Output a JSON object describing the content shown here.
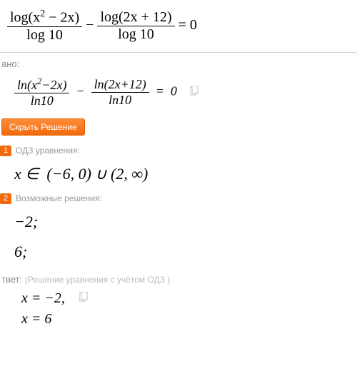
{
  "header_equation_html": "<span class=\"frac\"><span class=\"top\">log(x<span class=\"sup\">2</span> − 2x)</span><span class=\"bot\">log 10</span></span> − <span class=\"frac\"><span class=\"top\">log(2x + 12)</span><span class=\"bot\">log 10</span></span> = 0",
  "labels": {
    "given": "ано:",
    "hide_solution": "Скрыть Решение",
    "answer_main": "твет:",
    "answer_sub": "(Решение уравнения с учётом ОДЗ )"
  },
  "given_equation_html": "<span class=\"frac\"><span class=\"top\">ln(<i>x</i><span class=\"sup\">2</span>−2<i>x</i>)</span><span class=\"bot\">ln10</span></span> &nbsp;−&nbsp; <span class=\"frac\"><span class=\"top\">ln(2<i>x</i>+12)</span><span class=\"bot\">ln10</span></span> &nbsp;=&nbsp; 0",
  "steps": [
    {
      "num": "1",
      "text": "ОДЗ уравнения:",
      "math_html": "<i>x</i> ∈ &nbsp;(−6, 0) ∪ (2, ∞)"
    },
    {
      "num": "2",
      "text": "Возможные решения:",
      "math_lines": [
        "−2;",
        "6;"
      ]
    }
  ],
  "answers": [
    "x = −2,",
    "x = 6"
  ],
  "colors": {
    "accent": "#f26a0a",
    "muted_text": "#888888",
    "light_text": "#bbbbbb",
    "divider": "#d4d4d4"
  }
}
